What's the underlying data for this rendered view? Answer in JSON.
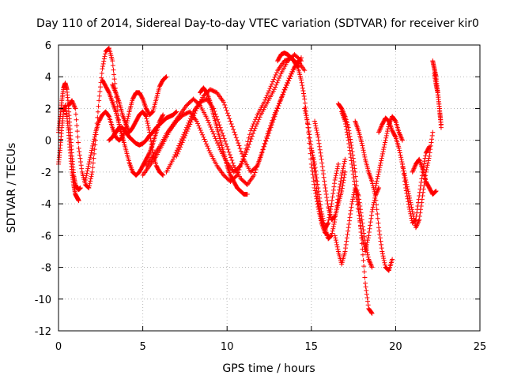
{
  "chart_data": {
    "type": "scatter",
    "title": "Day 110 of 2014, Sidereal Day-to-day VTEC variation (SDTVAR) for receiver kir0",
    "xlabel": "GPS time / hours",
    "ylabel": "SDTVAR / TECUs",
    "xlim": [
      0,
      25
    ],
    "ylim": [
      -12,
      6
    ],
    "xticks": [
      "0",
      "5",
      "10",
      "15",
      "20",
      "25"
    ],
    "yticks": [
      "6",
      "4",
      "2",
      "0",
      "-2",
      "-4",
      "-6",
      "-8",
      "-10",
      "-12"
    ],
    "grid": true,
    "marker": "plus",
    "color": "#ff0000",
    "series": [
      {
        "name": "s1",
        "x": [
          0.0,
          0.1,
          0.2,
          0.3,
          0.4,
          0.5,
          0.6,
          0.7,
          0.8,
          0.9,
          1.0,
          1.1,
          1.2,
          1.3
        ],
        "y": [
          0.5,
          1.5,
          2.5,
          3.3,
          3.6,
          3.2,
          2.0,
          0.5,
          -1.0,
          -2.2,
          -2.8,
          -3.0,
          -3.1,
          -3.0
        ]
      },
      {
        "name": "s2",
        "x": [
          0.0,
          0.1,
          0.2,
          0.3,
          0.4,
          0.5,
          0.6,
          0.7,
          0.8,
          0.9,
          1.0,
          1.1,
          1.2
        ],
        "y": [
          -1.5,
          -0.5,
          0.8,
          1.8,
          2.2,
          1.5,
          0.5,
          -0.8,
          -2.0,
          -2.8,
          -3.4,
          -3.6,
          -3.8
        ]
      },
      {
        "name": "s3",
        "x": [
          0.6,
          0.8,
          1.0,
          1.2,
          1.4,
          1.6,
          1.8,
          2.0,
          2.2,
          2.4,
          2.6,
          2.8,
          3.0,
          3.2,
          3.4,
          3.6,
          3.8
        ],
        "y": [
          2.2,
          2.5,
          2.0,
          -0.5,
          -2.0,
          -2.8,
          -3.0,
          -2.0,
          0.0,
          2.5,
          4.5,
          5.6,
          5.8,
          5.0,
          3.0,
          1.0,
          0.0
        ]
      },
      {
        "name": "s4",
        "x": [
          1.6,
          1.8,
          2.0,
          2.2,
          2.4,
          2.6,
          2.8,
          3.0,
          3.2,
          3.4,
          3.6,
          3.8,
          4.0,
          4.2,
          4.4,
          4.6,
          4.8,
          5.0,
          5.2,
          5.4,
          5.6,
          5.8,
          6.0,
          6.2,
          6.4
        ],
        "y": [
          -2.5,
          -1.5,
          -0.5,
          0.5,
          1.2,
          1.6,
          1.8,
          1.5,
          0.8,
          0.2,
          0.0,
          0.2,
          0.8,
          1.8,
          2.6,
          3.0,
          3.0,
          2.6,
          2.0,
          1.6,
          1.8,
          2.6,
          3.4,
          3.8,
          4.0
        ]
      },
      {
        "name": "s5",
        "x": [
          3.0,
          3.2,
          3.4,
          3.6,
          3.8,
          4.0,
          4.2,
          4.4,
          4.6,
          4.8,
          5.0,
          5.2,
          5.4,
          5.6,
          5.8,
          6.0,
          6.2,
          6.4,
          6.6,
          6.8,
          7.0
        ],
        "y": [
          0.0,
          0.2,
          0.5,
          0.8,
          0.8,
          0.5,
          0.2,
          0.0,
          -0.2,
          -0.3,
          -0.2,
          0.0,
          0.3,
          0.5,
          0.8,
          1.0,
          1.2,
          1.4,
          1.5,
          1.6,
          1.8
        ]
      },
      {
        "name": "s6",
        "x": [
          3.2,
          3.4,
          3.6,
          3.8,
          4.0,
          4.2,
          4.4,
          4.6,
          4.8,
          5.0,
          5.2,
          5.4,
          5.6,
          5.8,
          6.0,
          6.2
        ],
        "y": [
          3.5,
          3.0,
          2.4,
          1.6,
          1.0,
          0.5,
          0.8,
          1.2,
          1.6,
          1.8,
          1.5,
          0.5,
          -0.8,
          -1.6,
          -2.0,
          -2.2
        ]
      },
      {
        "name": "s7",
        "x": [
          2.6,
          2.8,
          3.0,
          3.2,
          3.4,
          3.6,
          3.8,
          4.0,
          4.2,
          4.4,
          4.6,
          4.8,
          5.0,
          5.2,
          5.4,
          5.6,
          5.8,
          6.0,
          6.2
        ],
        "y": [
          3.8,
          3.4,
          3.0,
          2.4,
          1.8,
          1.0,
          0.2,
          -0.6,
          -1.4,
          -2.0,
          -2.2,
          -2.0,
          -1.6,
          -1.2,
          -0.8,
          -0.2,
          0.5,
          1.2,
          1.6
        ]
      },
      {
        "name": "s8",
        "x": [
          5.0,
          5.4,
          5.8,
          6.2,
          6.6,
          7.0,
          7.4,
          7.8,
          8.2,
          8.6,
          9.0,
          9.4,
          9.8,
          10.2,
          10.6,
          11.0,
          11.4,
          11.8,
          12.2,
          12.6,
          13.0,
          13.4,
          13.8,
          14.2
        ],
        "y": [
          -2.2,
          -1.6,
          -1.0,
          -0.2,
          0.6,
          1.2,
          1.6,
          1.8,
          1.2,
          0.2,
          -0.8,
          -1.6,
          -2.2,
          -2.6,
          -2.2,
          -1.0,
          0.6,
          1.6,
          2.4,
          3.4,
          4.4,
          5.0,
          5.2,
          4.6
        ]
      },
      {
        "name": "s9",
        "x": [
          5.2,
          5.6,
          6.0,
          6.4,
          6.8,
          7.2,
          7.6,
          8.0,
          8.4,
          8.8,
          9.2,
          9.6,
          10.0,
          10.4,
          10.8,
          11.2,
          11.6,
          12.0,
          12.4,
          12.8,
          13.2,
          13.6,
          14.0,
          14.4
        ],
        "y": [
          -1.6,
          -1.0,
          -0.4,
          0.4,
          1.0,
          1.6,
          2.2,
          2.6,
          2.2,
          1.4,
          0.4,
          -0.6,
          -1.4,
          -2.0,
          -1.6,
          -0.6,
          0.6,
          1.6,
          2.4,
          3.2,
          4.2,
          5.0,
          5.4,
          5.0
        ]
      },
      {
        "name": "s10",
        "x": [
          6.4,
          6.8,
          7.2,
          7.6,
          8.0,
          8.4,
          8.8,
          9.2,
          9.6,
          10.0,
          10.4,
          10.8,
          11.2,
          11.6,
          12.0,
          12.4,
          12.8,
          13.2,
          13.6,
          14.0,
          14.4
        ],
        "y": [
          -2.0,
          -1.2,
          -0.2,
          0.8,
          1.8,
          2.4,
          2.6,
          2.0,
          0.8,
          -0.4,
          -1.6,
          -2.4,
          -2.8,
          -2.2,
          -1.0,
          0.4,
          1.6,
          2.6,
          3.6,
          4.6,
          5.2
        ]
      },
      {
        "name": "s11",
        "x": [
          7.0,
          7.4,
          7.8,
          8.2,
          8.6,
          9.0,
          9.4,
          9.8,
          10.2,
          10.6,
          11.0,
          11.4,
          11.8,
          12.2,
          12.6,
          13.0,
          13.4,
          13.8,
          14.2,
          14.6
        ],
        "y": [
          -1.0,
          0.0,
          1.0,
          2.0,
          2.8,
          3.2,
          3.0,
          2.4,
          1.2,
          0.0,
          -1.2,
          -2.0,
          -1.6,
          -0.4,
          0.8,
          2.0,
          3.2,
          4.2,
          5.0,
          4.4
        ]
      },
      {
        "name": "s12",
        "x": [
          8.4,
          8.6,
          8.8,
          9.0,
          9.2,
          9.4,
          9.6,
          9.8,
          10.0,
          10.2,
          10.4,
          10.6,
          10.8,
          11.0,
          11.2
        ],
        "y": [
          3.0,
          3.3,
          3.0,
          2.4,
          1.6,
          0.8,
          0.0,
          -0.8,
          -1.6,
          -2.2,
          -2.6,
          -3.0,
          -3.2,
          -3.4,
          -3.4
        ]
      },
      {
        "name": "s13",
        "x": [
          13.0,
          13.2,
          13.4,
          13.6,
          13.8,
          14.0,
          14.2,
          14.4,
          14.6,
          14.8,
          15.0,
          15.2,
          15.4,
          15.6,
          15.8,
          16.0
        ],
        "y": [
          5.0,
          5.4,
          5.5,
          5.4,
          5.2,
          5.0,
          4.6,
          3.8,
          2.6,
          0.8,
          -1.5,
          -3.0,
          -4.2,
          -5.2,
          -5.8,
          -6.0
        ]
      },
      {
        "name": "s14",
        "x": [
          14.6,
          14.8,
          15.0,
          15.2,
          15.4,
          15.6,
          15.8,
          16.0,
          16.2,
          16.4,
          16.6
        ],
        "y": [
          2.0,
          1.0,
          -0.5,
          -2.0,
          -3.8,
          -5.0,
          -5.6,
          -5.2,
          -4.0,
          -2.5,
          -1.5
        ]
      },
      {
        "name": "s15",
        "x": [
          15.0,
          15.2,
          15.4,
          15.6,
          15.8,
          16.0,
          16.2,
          16.4,
          16.6,
          16.8,
          17.0
        ],
        "y": [
          -0.5,
          -1.5,
          -3.0,
          -4.5,
          -5.5,
          -6.2,
          -6.0,
          -5.0,
          -3.5,
          -2.2,
          -1.2
        ]
      },
      {
        "name": "s16",
        "x": [
          15.2,
          15.4,
          15.6,
          15.8,
          16.0,
          16.2,
          16.4,
          16.6,
          16.8,
          17.0
        ],
        "y": [
          1.2,
          0.2,
          -1.2,
          -2.8,
          -4.2,
          -5.0,
          -4.8,
          -4.0,
          -3.2,
          -2.0
        ]
      },
      {
        "name": "s17",
        "x": [
          16.4,
          16.6,
          16.8,
          17.0,
          17.2,
          17.4,
          17.6,
          17.8,
          18.0,
          18.2,
          18.4,
          18.6
        ],
        "y": [
          -6.0,
          -7.0,
          -7.8,
          -7.0,
          -5.5,
          -4.0,
          -3.0,
          -3.5,
          -5.0,
          -6.5,
          -7.5,
          -8.0
        ]
      },
      {
        "name": "s18",
        "x": [
          16.6,
          16.8,
          17.0,
          17.2,
          17.4,
          17.6,
          17.8,
          18.0,
          18.2,
          18.4,
          18.6
        ],
        "y": [
          2.3,
          2.0,
          1.5,
          0.8,
          -0.5,
          -2.0,
          -4.0,
          -6.5,
          -9.0,
          -10.6,
          -10.9
        ]
      },
      {
        "name": "s19",
        "x": [
          16.8,
          17.0,
          17.2,
          17.4,
          17.6,
          17.8,
          18.0,
          18.2,
          18.4,
          18.6,
          18.8,
          19.0
        ],
        "y": [
          1.8,
          1.2,
          0.0,
          -1.5,
          -3.0,
          -4.5,
          -6.0,
          -7.0,
          -6.0,
          -4.5,
          -3.5,
          -3.0
        ]
      },
      {
        "name": "s20",
        "x": [
          17.6,
          17.8,
          18.0,
          18.2,
          18.4,
          18.6,
          18.8,
          19.0,
          19.2,
          19.4,
          19.6,
          19.8
        ],
        "y": [
          1.2,
          0.6,
          -0.2,
          -1.2,
          -2.0,
          -2.6,
          -3.5,
          -5.5,
          -7.0,
          -8.0,
          -8.2,
          -7.5
        ]
      },
      {
        "name": "s21",
        "x": [
          18.8,
          19.0,
          19.2,
          19.4,
          19.6,
          19.8,
          20.0,
          20.2,
          20.4
        ],
        "y": [
          -3.0,
          -2.0,
          -1.0,
          0.0,
          1.0,
          1.5,
          1.2,
          0.5,
          0.0
        ]
      },
      {
        "name": "s22",
        "x": [
          19.0,
          19.2,
          19.4,
          19.6,
          19.8,
          20.0,
          20.2,
          20.4,
          20.6,
          20.8,
          21.0,
          21.2,
          21.4,
          21.6,
          21.8,
          22.0
        ],
        "y": [
          0.5,
          1.0,
          1.4,
          1.2,
          0.6,
          0.2,
          -0.5,
          -1.5,
          -3.0,
          -4.2,
          -5.2,
          -5.0,
          -3.5,
          -2.0,
          -0.8,
          -0.4
        ]
      },
      {
        "name": "s23",
        "x": [
          20.4,
          20.6,
          20.8,
          21.0,
          21.2,
          21.4,
          21.6,
          21.8,
          22.0,
          22.2
        ],
        "y": [
          -1.5,
          -2.5,
          -3.5,
          -4.5,
          -5.5,
          -5.0,
          -3.5,
          -2.0,
          -1.0,
          0.5
        ]
      },
      {
        "name": "s24",
        "x": [
          21.0,
          21.2,
          21.4,
          21.6,
          21.8,
          22.0,
          22.2,
          22.4
        ],
        "y": [
          -2.0,
          -1.5,
          -1.2,
          -1.8,
          -2.6,
          -3.0,
          -3.4,
          -3.2
        ]
      },
      {
        "name": "s25",
        "x": [
          22.2,
          22.3,
          22.4,
          22.5,
          22.6,
          22.7
        ],
        "y": [
          5.0,
          4.5,
          4.0,
          3.0,
          2.0,
          0.8
        ]
      },
      {
        "name": "s26",
        "x": [
          22.3,
          22.4,
          22.5,
          22.6,
          22.7
        ],
        "y": [
          4.2,
          3.5,
          3.0,
          2.0,
          1.0
        ]
      }
    ]
  }
}
